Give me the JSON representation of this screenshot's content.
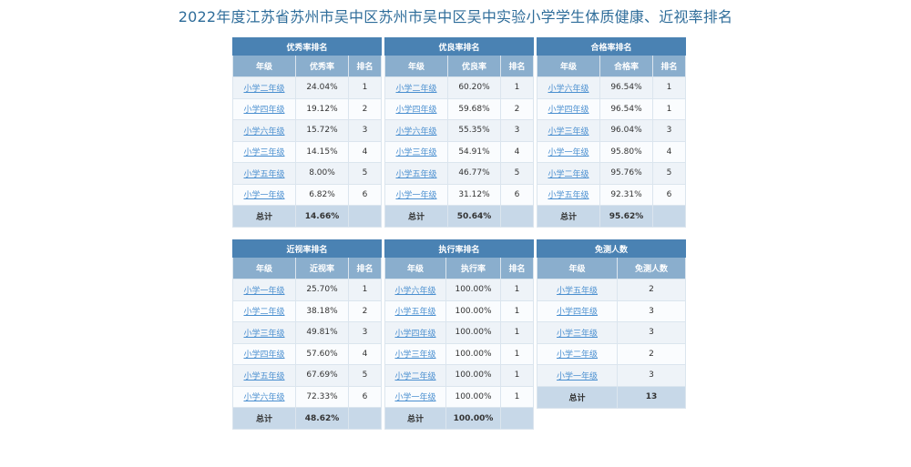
{
  "title": "2022年度江苏省苏州市吴中区苏州市吴中区吴中实验小学学生体质健康、近视率排名",
  "panels": [
    {
      "caption": "优秀率排名",
      "headers": [
        "年级",
        "优秀率",
        "排名"
      ],
      "rows": [
        [
          "小学二年级",
          "24.04%",
          "1"
        ],
        [
          "小学四年级",
          "19.12%",
          "2"
        ],
        [
          "小学六年级",
          "15.72%",
          "3"
        ],
        [
          "小学三年级",
          "14.15%",
          "4"
        ],
        [
          "小学五年级",
          "8.00%",
          "5"
        ],
        [
          "小学一年级",
          "6.82%",
          "6"
        ]
      ],
      "total": [
        "总计",
        "14.66%",
        ""
      ]
    },
    {
      "caption": "优良率排名",
      "headers": [
        "年级",
        "优良率",
        "排名"
      ],
      "rows": [
        [
          "小学二年级",
          "60.20%",
          "1"
        ],
        [
          "小学四年级",
          "59.68%",
          "2"
        ],
        [
          "小学六年级",
          "55.35%",
          "3"
        ],
        [
          "小学三年级",
          "54.91%",
          "4"
        ],
        [
          "小学五年级",
          "46.77%",
          "5"
        ],
        [
          "小学一年级",
          "31.12%",
          "6"
        ]
      ],
      "total": [
        "总计",
        "50.64%",
        ""
      ]
    },
    {
      "caption": "合格率排名",
      "headers": [
        "年级",
        "合格率",
        "排名"
      ],
      "rows": [
        [
          "小学六年级",
          "96.54%",
          "1"
        ],
        [
          "小学四年级",
          "96.54%",
          "1"
        ],
        [
          "小学三年级",
          "96.04%",
          "3"
        ],
        [
          "小学一年级",
          "95.80%",
          "4"
        ],
        [
          "小学二年级",
          "95.76%",
          "5"
        ],
        [
          "小学五年级",
          "92.31%",
          "6"
        ]
      ],
      "total": [
        "总计",
        "95.62%",
        ""
      ]
    },
    {
      "caption": "近视率排名",
      "headers": [
        "年级",
        "近视率",
        "排名"
      ],
      "rows": [
        [
          "小学一年级",
          "25.70%",
          "1"
        ],
        [
          "小学二年级",
          "38.18%",
          "2"
        ],
        [
          "小学三年级",
          "49.81%",
          "3"
        ],
        [
          "小学四年级",
          "57.60%",
          "4"
        ],
        [
          "小学五年级",
          "67.69%",
          "5"
        ],
        [
          "小学六年级",
          "72.33%",
          "6"
        ]
      ],
      "total": [
        "总计",
        "48.62%",
        ""
      ]
    },
    {
      "caption": "执行率排名",
      "headers": [
        "年级",
        "执行率",
        "排名"
      ],
      "rows": [
        [
          "小学六年级",
          "100.00%",
          "1"
        ],
        [
          "小学五年级",
          "100.00%",
          "1"
        ],
        [
          "小学四年级",
          "100.00%",
          "1"
        ],
        [
          "小学三年级",
          "100.00%",
          "1"
        ],
        [
          "小学二年级",
          "100.00%",
          "1"
        ],
        [
          "小学一年级",
          "100.00%",
          "1"
        ]
      ],
      "total": [
        "总计",
        "100.00%",
        ""
      ]
    },
    {
      "caption": "免测人数",
      "headers": [
        "年级",
        "免测人数"
      ],
      "rows": [
        [
          "小学五年级",
          "2"
        ],
        [
          "小学四年级",
          "3"
        ],
        [
          "小学三年级",
          "3"
        ],
        [
          "小学二年级",
          "2"
        ],
        [
          "小学一年级",
          "3"
        ]
      ],
      "total": [
        "总计",
        "13"
      ]
    }
  ]
}
